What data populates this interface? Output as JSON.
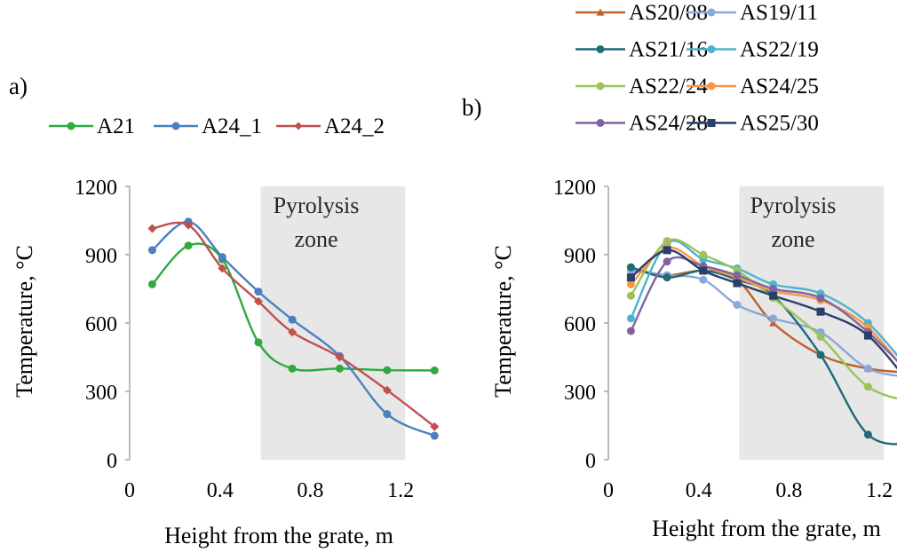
{
  "chart_data": [
    {
      "panel_label": "a)",
      "type": "line",
      "smooth": true,
      "title": "",
      "xlabel": "Height from the grate, m",
      "ylabel": "Temperature, °C",
      "xlim": [
        0,
        1.4
      ],
      "ylim": [
        0,
        1200
      ],
      "xticks": [
        0,
        0.4,
        0.8,
        1.2
      ],
      "xtick_labels": [
        "0",
        "0.4",
        "0.8",
        "1.2"
      ],
      "yticks": [
        0,
        300,
        600,
        900,
        1200
      ],
      "ytick_labels": [
        "0",
        "300",
        "600",
        "900",
        "1200"
      ],
      "grid": false,
      "legend_position": "top",
      "shaded_region": {
        "x": [
          0.58,
          1.22
        ],
        "label_line1": "Pyrolysis",
        "label_line2": "zone",
        "color": "#e7e7e7"
      },
      "series": [
        {
          "name": "A21",
          "color": "#2eaa3f",
          "marker": "circle",
          "x": [
            0.1,
            0.26,
            0.41,
            0.57,
            0.72,
            0.93,
            1.14,
            1.35
          ],
          "y": [
            770,
            940,
            880,
            515,
            400,
            400,
            393,
            392
          ]
        },
        {
          "name": "A24_1",
          "color": "#4a7fc1",
          "marker": "circle",
          "x": [
            0.1,
            0.26,
            0.41,
            0.57,
            0.72,
            0.93,
            1.14,
            1.35
          ],
          "y": [
            920,
            1045,
            890,
            738,
            615,
            455,
            200,
            105
          ]
        },
        {
          "name": "A24_2",
          "color": "#c0504d",
          "marker": "diamond",
          "x": [
            0.1,
            0.26,
            0.41,
            0.57,
            0.72,
            0.93,
            1.14,
            1.35
          ],
          "y": [
            1015,
            1030,
            840,
            695,
            560,
            450,
            305,
            145
          ]
        }
      ]
    },
    {
      "panel_label": "b)",
      "type": "line",
      "smooth": true,
      "title": "",
      "xlabel": "Height from the grate, m",
      "ylabel": "Temperature, °C",
      "xlim": [
        0,
        1.4
      ],
      "ylim": [
        0,
        1200
      ],
      "xticks": [
        0,
        0.4,
        0.8,
        1.2
      ],
      "xtick_labels": [
        "0",
        "0.4",
        "0.8",
        "1.2"
      ],
      "yticks": [
        0,
        300,
        600,
        900,
        1200
      ],
      "ytick_labels": [
        "0",
        "300",
        "600",
        "900",
        "1200"
      ],
      "grid": false,
      "legend_position": "top",
      "shaded_region": {
        "x": [
          0.58,
          1.22
        ],
        "label_line1": "Pyrolysis",
        "label_line2": "zone",
        "color": "#e7e7e7"
      },
      "series": [
        {
          "name": "AS20/08",
          "color": "#c0602a",
          "marker": "triangle",
          "x": [
            0.1,
            0.26,
            0.42,
            0.57,
            0.73,
            0.94,
            1.15,
            1.36
          ],
          "y": [
            840,
            810,
            830,
            790,
            600,
            460,
            400,
            380
          ]
        },
        {
          "name": "AS19/11",
          "color": "#8aa8d8",
          "marker": "circle",
          "x": [
            0.1,
            0.26,
            0.42,
            0.57,
            0.73,
            0.94,
            1.15,
            1.36
          ],
          "y": [
            830,
            810,
            790,
            680,
            620,
            560,
            400,
            360
          ]
        },
        {
          "name": "AS21/16",
          "color": "#1f6b7a",
          "marker": "circle",
          "x": [
            0.1,
            0.26,
            0.42,
            0.57,
            0.73,
            0.94,
            1.15,
            1.36
          ],
          "y": [
            845,
            800,
            830,
            790,
            720,
            460,
            110,
            70
          ]
        },
        {
          "name": "AS22/19",
          "color": "#4cb4cf",
          "marker": "circle",
          "x": [
            0.1,
            0.26,
            0.42,
            0.57,
            0.73,
            0.94,
            1.15,
            1.36
          ],
          "y": [
            620,
            950,
            880,
            840,
            770,
            730,
            600,
            360
          ]
        },
        {
          "name": "AS22/24",
          "color": "#9bc45a",
          "marker": "circle",
          "x": [
            0.1,
            0.26,
            0.42,
            0.57,
            0.73,
            0.94,
            1.15,
            1.36
          ],
          "y": [
            720,
            960,
            900,
            830,
            710,
            540,
            320,
            250
          ]
        },
        {
          "name": "AS24/25",
          "color": "#f79646",
          "marker": "circle",
          "x": [
            0.1,
            0.26,
            0.42,
            0.57,
            0.73,
            0.94,
            1.15,
            1.36
          ],
          "y": [
            770,
            930,
            850,
            800,
            740,
            700,
            580,
            330
          ]
        },
        {
          "name": "AS24/28",
          "color": "#8064a2",
          "marker": "circle",
          "x": [
            0.1,
            0.26,
            0.42,
            0.57,
            0.73,
            0.94,
            1.15,
            1.36
          ],
          "y": [
            565,
            870,
            850,
            810,
            750,
            710,
            560,
            350
          ]
        },
        {
          "name": "AS25/30",
          "color": "#2b3f6b",
          "marker": "x",
          "x": [
            0.1,
            0.26,
            0.42,
            0.57,
            0.73,
            0.94,
            1.15,
            1.36
          ],
          "y": [
            800,
            920,
            830,
            775,
            720,
            650,
            545,
            300
          ]
        }
      ]
    }
  ]
}
